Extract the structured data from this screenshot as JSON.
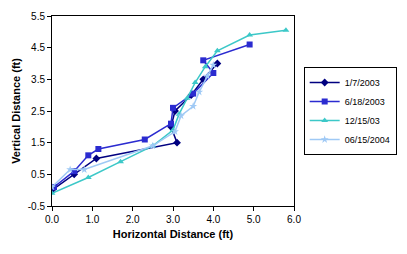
{
  "chart_data": {
    "type": "scatter",
    "x_label": "Horizontal Distance (ft)",
    "y_label": "Vertical Distance (ft)",
    "xlim": [
      0,
      6
    ],
    "xticks": [
      {
        "value": 0,
        "label": "0.0"
      },
      {
        "value": 1,
        "label": "1.0"
      },
      {
        "value": 2,
        "label": "2.0"
      },
      {
        "value": 3,
        "label": "3.0"
      },
      {
        "value": 4,
        "label": "4.0"
      },
      {
        "value": 5,
        "label": "5.0"
      },
      {
        "value": 6,
        "label": "6.0"
      }
    ],
    "ylim": [
      -0.5,
      5.5
    ],
    "yticks": [
      -0.5,
      0.5,
      1.5,
      2.5,
      3.5,
      4.5,
      5.5
    ],
    "grid": false,
    "legend": "right",
    "series": [
      {
        "name": "1/7/2003",
        "color": "#000080",
        "marker": "diamond",
        "line_style": "solid",
        "x": [
          0.0,
          0.55,
          1.1,
          3.1,
          2.95,
          3.05,
          3.45,
          3.75,
          4.1
        ],
        "values": [
          0.0,
          0.5,
          1.0,
          1.5,
          2.0,
          2.5,
          3.0,
          3.5,
          4.0
        ]
      },
      {
        "name": "6/18/2003",
        "color": "#2b2bd0",
        "marker": "square",
        "line_style": "solid",
        "x": [
          0.05,
          0.55,
          0.9,
          1.15,
          2.3,
          2.95,
          3.0,
          3.5,
          4.0,
          3.75,
          4.9
        ],
        "values": [
          0.1,
          0.6,
          1.1,
          1.3,
          1.6,
          2.1,
          2.6,
          3.05,
          3.7,
          4.1,
          4.6
        ]
      },
      {
        "name": "12/15/03",
        "color": "#3cc8c8",
        "marker": "triangle-up",
        "line_style": "solid",
        "x": [
          0.0,
          0.9,
          1.7,
          2.5,
          3.0,
          3.15,
          3.35,
          3.55,
          3.8,
          4.1,
          4.9,
          5.8
        ],
        "values": [
          -0.1,
          0.4,
          0.9,
          1.4,
          1.9,
          2.4,
          2.9,
          3.4,
          3.9,
          4.4,
          4.9,
          5.05
        ]
      },
      {
        "name": "06/15/2004",
        "color": "#9fc9f5",
        "marker": "star",
        "line_style": "solid",
        "x": [
          0.0,
          0.45,
          0.8,
          2.5,
          3.05,
          3.2,
          3.5,
          3.65,
          3.85,
          4.0
        ],
        "values": [
          0.1,
          0.65,
          0.65,
          1.4,
          1.85,
          2.35,
          2.65,
          3.1,
          3.6,
          3.95
        ]
      }
    ]
  }
}
